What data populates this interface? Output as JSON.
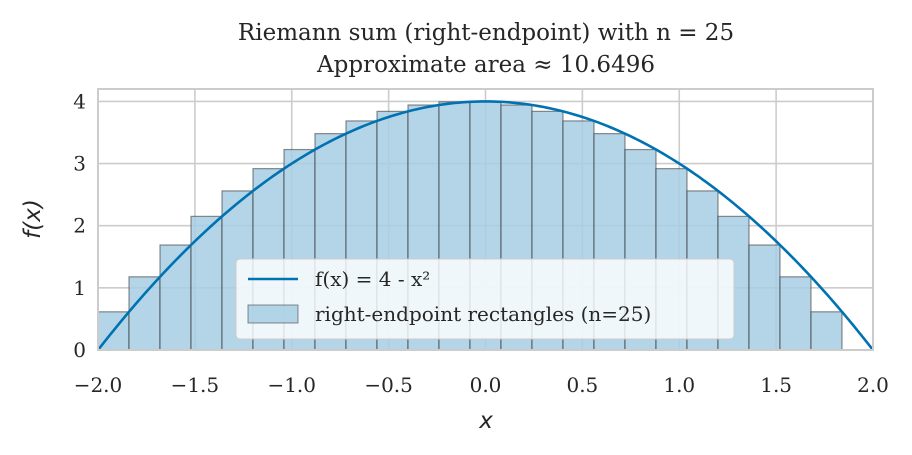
{
  "chart_data": {
    "type": "bar",
    "title": "Riemann sum (right-endpoint) with n = 25",
    "subtitle": "Approximate area ≈ 10.6496",
    "xlabel": "x",
    "ylabel": "f(x)",
    "xlim": [
      -2.0,
      2.0
    ],
    "ylim": [
      0,
      4.2
    ],
    "x_ticks": [
      -2.0,
      -1.5,
      -1.0,
      -0.5,
      0.0,
      0.5,
      1.0,
      1.5,
      2.0
    ],
    "x_tick_labels": [
      "−2.0",
      "−1.5",
      "−1.0",
      "−0.5",
      "0.0",
      "0.5",
      "1.0",
      "1.5",
      "2.0"
    ],
    "y_ticks": [
      0,
      1,
      2,
      3,
      4
    ],
    "y_tick_labels": [
      "0",
      "1",
      "2",
      "3",
      "4"
    ],
    "grid": true,
    "legend_position": "lower-center",
    "function": {
      "name": "f(x) = 4 - x²",
      "expression": "4 - x^2",
      "color": "#0072b2"
    },
    "rectangles": {
      "name": "right-endpoint rectangles (n=25)",
      "n": 25,
      "width": 0.16,
      "fill_color": "#a6cee3",
      "edge_color": "#333333",
      "x_left": [
        -2.0,
        -1.84,
        -1.68,
        -1.52,
        -1.36,
        -1.2,
        -1.04,
        -0.88,
        -0.72,
        -0.56,
        -0.4,
        -0.24,
        -0.08,
        0.08,
        0.24,
        0.4,
        0.56,
        0.72,
        0.88,
        1.04,
        1.2,
        1.36,
        1.52,
        1.68,
        1.84
      ],
      "heights": [
        0.6144,
        1.1776,
        1.6896,
        2.1504,
        2.56,
        2.9184,
        3.2256,
        3.4816,
        3.6864,
        3.84,
        3.9424,
        3.9936,
        3.9936,
        3.9424,
        3.84,
        3.6864,
        3.4816,
        3.2256,
        2.9184,
        2.56,
        2.1504,
        1.6896,
        1.1776,
        0.6144,
        0.0
      ]
    }
  }
}
